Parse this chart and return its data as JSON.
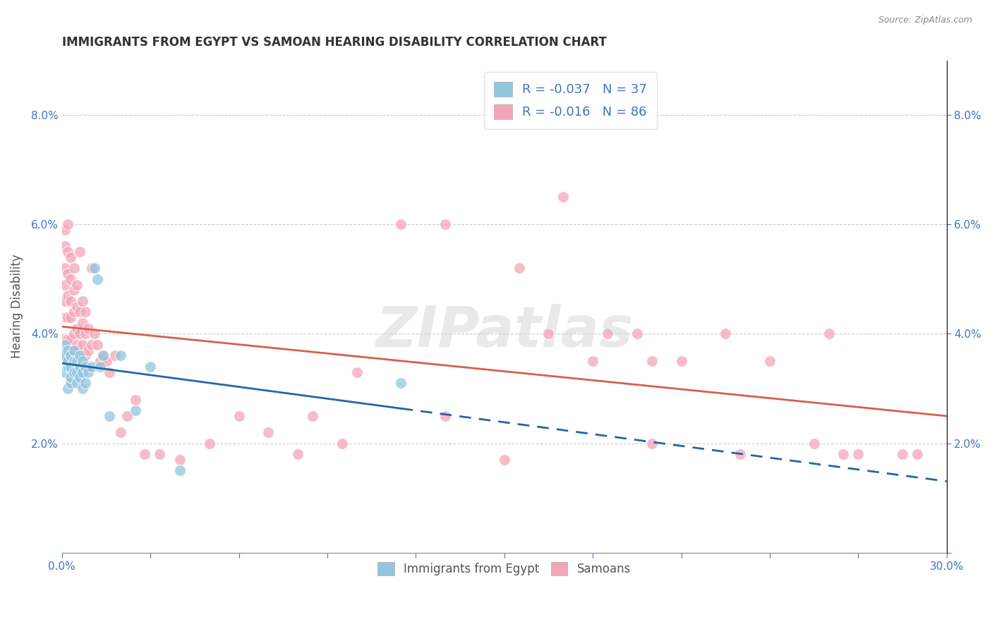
{
  "title": "IMMIGRANTS FROM EGYPT VS SAMOAN HEARING DISABILITY CORRELATION CHART",
  "source": "Source: ZipAtlas.com",
  "ylabel": "Hearing Disability",
  "xlim": [
    0.0,
    0.3
  ],
  "ylim": [
    0.0,
    0.09
  ],
  "xticks": [
    0.0,
    0.03,
    0.06,
    0.09,
    0.12,
    0.15,
    0.18,
    0.21,
    0.24,
    0.27,
    0.3
  ],
  "yticks": [
    0.0,
    0.02,
    0.04,
    0.06,
    0.08
  ],
  "legend1_label": "R = -0.037   N = 37",
  "legend2_label": "R = -0.016   N = 86",
  "blue_color": "#92c5de",
  "pink_color": "#f4a6b8",
  "blue_line_color": "#2166ac",
  "pink_line_color": "#d6604d",
  "watermark": "ZIPatlas",
  "egypt_x": [
    0.001,
    0.001,
    0.001,
    0.002,
    0.002,
    0.002,
    0.002,
    0.003,
    0.003,
    0.003,
    0.003,
    0.004,
    0.004,
    0.004,
    0.005,
    0.005,
    0.005,
    0.006,
    0.006,
    0.006,
    0.007,
    0.007,
    0.007,
    0.008,
    0.008,
    0.009,
    0.01,
    0.011,
    0.012,
    0.013,
    0.014,
    0.016,
    0.02,
    0.025,
    0.03,
    0.04,
    0.115
  ],
  "egypt_y": [
    0.033,
    0.036,
    0.038,
    0.03,
    0.034,
    0.037,
    0.035,
    0.031,
    0.034,
    0.036,
    0.032,
    0.033,
    0.035,
    0.037,
    0.031,
    0.033,
    0.035,
    0.032,
    0.034,
    0.036,
    0.03,
    0.033,
    0.035,
    0.031,
    0.034,
    0.033,
    0.034,
    0.052,
    0.05,
    0.034,
    0.036,
    0.025,
    0.036,
    0.026,
    0.034,
    0.015,
    0.031
  ],
  "samoan_x": [
    0.001,
    0.001,
    0.001,
    0.001,
    0.001,
    0.001,
    0.001,
    0.001,
    0.002,
    0.002,
    0.002,
    0.002,
    0.002,
    0.002,
    0.002,
    0.003,
    0.003,
    0.003,
    0.003,
    0.003,
    0.003,
    0.004,
    0.004,
    0.004,
    0.004,
    0.004,
    0.005,
    0.005,
    0.005,
    0.005,
    0.006,
    0.006,
    0.006,
    0.006,
    0.007,
    0.007,
    0.007,
    0.008,
    0.008,
    0.008,
    0.009,
    0.009,
    0.01,
    0.01,
    0.011,
    0.012,
    0.013,
    0.014,
    0.015,
    0.016,
    0.018,
    0.02,
    0.022,
    0.025,
    0.028,
    0.033,
    0.04,
    0.05,
    0.06,
    0.07,
    0.08,
    0.1,
    0.115,
    0.13,
    0.15,
    0.165,
    0.18,
    0.195,
    0.21,
    0.225,
    0.24,
    0.155,
    0.17,
    0.185,
    0.2,
    0.26,
    0.13,
    0.085,
    0.095,
    0.2,
    0.23,
    0.255,
    0.265,
    0.27,
    0.285,
    0.29
  ],
  "samoan_y": [
    0.036,
    0.039,
    0.043,
    0.046,
    0.049,
    0.052,
    0.056,
    0.059,
    0.035,
    0.039,
    0.043,
    0.047,
    0.051,
    0.055,
    0.06,
    0.036,
    0.039,
    0.043,
    0.046,
    0.05,
    0.054,
    0.037,
    0.04,
    0.044,
    0.048,
    0.052,
    0.038,
    0.041,
    0.045,
    0.049,
    0.036,
    0.04,
    0.044,
    0.055,
    0.038,
    0.042,
    0.046,
    0.036,
    0.04,
    0.044,
    0.037,
    0.041,
    0.038,
    0.052,
    0.04,
    0.038,
    0.035,
    0.036,
    0.035,
    0.033,
    0.036,
    0.022,
    0.025,
    0.028,
    0.018,
    0.018,
    0.017,
    0.02,
    0.025,
    0.022,
    0.018,
    0.033,
    0.06,
    0.025,
    0.017,
    0.04,
    0.035,
    0.04,
    0.035,
    0.04,
    0.035,
    0.052,
    0.065,
    0.04,
    0.035,
    0.04,
    0.06,
    0.025,
    0.02,
    0.02,
    0.018,
    0.02,
    0.018,
    0.018,
    0.018,
    0.018
  ]
}
